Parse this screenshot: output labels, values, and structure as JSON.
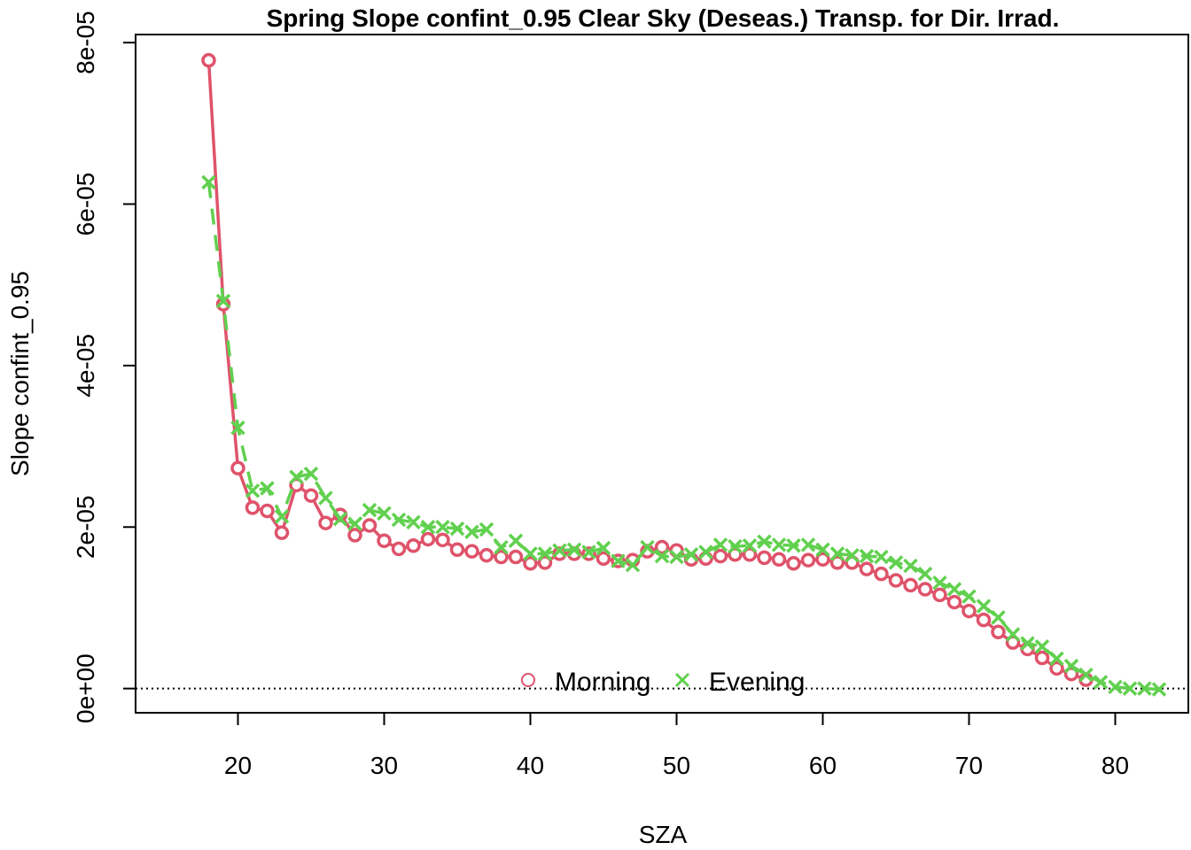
{
  "chart_data": {
    "type": "line",
    "title": "Spring Slope confint_0.95 Clear Sky (Deseas.) Transp. for Dir. Irrad.",
    "xlabel": "SZA",
    "ylabel": "Slope confint_0.95",
    "xlim": [
      13,
      85
    ],
    "ylim": [
      -3e-06,
      8.1e-05
    ],
    "x_ticks": [
      20,
      30,
      40,
      50,
      60,
      70,
      80
    ],
    "x_tick_labels": [
      "20",
      "30",
      "40",
      "50",
      "60",
      "70",
      "80"
    ],
    "y_ticks": [
      0,
      2e-05,
      4e-05,
      6e-05,
      8e-05
    ],
    "y_tick_labels": [
      "0e+00",
      "2e-05",
      "4e-05",
      "6e-05",
      "8e-05"
    ],
    "reference_line": 0,
    "legend_position": "bottom-center",
    "colors": {
      "morning": "#DF536B",
      "evening": "#61D04F"
    },
    "series": [
      {
        "name": "Morning",
        "marker": "circle",
        "line": "solid",
        "x": [
          18,
          19,
          20,
          21,
          22,
          23,
          24,
          25,
          26,
          27,
          28,
          29,
          30,
          31,
          32,
          33,
          34,
          35,
          36,
          37,
          38,
          39,
          40,
          41,
          42,
          43,
          44,
          45,
          46,
          47,
          48,
          49,
          50,
          51,
          52,
          53,
          54,
          55,
          56,
          57,
          58,
          59,
          60,
          61,
          62,
          63,
          64,
          65,
          66,
          67,
          68,
          69,
          70,
          71,
          72,
          73,
          74,
          75,
          76,
          77,
          78
        ],
        "y": [
          7.78e-05,
          4.76e-05,
          2.73e-05,
          2.24e-05,
          2.2e-05,
          1.93e-05,
          2.52e-05,
          2.39e-05,
          2.05e-05,
          2.15e-05,
          1.9e-05,
          2.02e-05,
          1.83e-05,
          1.73e-05,
          1.77e-05,
          1.85e-05,
          1.84e-05,
          1.72e-05,
          1.7e-05,
          1.65e-05,
          1.63e-05,
          1.63e-05,
          1.55e-05,
          1.56e-05,
          1.67e-05,
          1.67e-05,
          1.67e-05,
          1.61e-05,
          1.58e-05,
          1.59e-05,
          1.7e-05,
          1.75e-05,
          1.71e-05,
          1.6e-05,
          1.61e-05,
          1.64e-05,
          1.66e-05,
          1.66e-05,
          1.62e-05,
          1.6e-05,
          1.55e-05,
          1.59e-05,
          1.6e-05,
          1.56e-05,
          1.56e-05,
          1.48e-05,
          1.42e-05,
          1.34e-05,
          1.28e-05,
          1.23e-05,
          1.16e-05,
          1.07e-05,
          9.6e-06,
          8.5e-06,
          7e-06,
          5.7e-06,
          4.9e-06,
          3.8e-06,
          2.5e-06,
          1.8e-06,
          1.1e-06
        ]
      },
      {
        "name": "Evening",
        "marker": "cross",
        "line": "dashed",
        "x": [
          18,
          19,
          20,
          21,
          22,
          23,
          24,
          25,
          26,
          27,
          28,
          29,
          30,
          31,
          32,
          33,
          34,
          35,
          36,
          37,
          38,
          39,
          40,
          41,
          42,
          43,
          44,
          45,
          46,
          47,
          48,
          49,
          50,
          51,
          52,
          53,
          54,
          55,
          56,
          57,
          58,
          59,
          60,
          61,
          62,
          63,
          64,
          65,
          66,
          67,
          68,
          69,
          70,
          71,
          72,
          73,
          74,
          75,
          76,
          77,
          78,
          79,
          80,
          81,
          82,
          83
        ],
        "y": [
          6.27e-05,
          4.8e-05,
          3.23e-05,
          2.45e-05,
          2.48e-05,
          2.13e-05,
          2.62e-05,
          2.66e-05,
          2.36e-05,
          2.1e-05,
          2.04e-05,
          2.21e-05,
          2.17e-05,
          2.09e-05,
          2.06e-05,
          2e-05,
          2e-05,
          1.98e-05,
          1.94e-05,
          1.97e-05,
          1.75e-05,
          1.83e-05,
          1.67e-05,
          1.67e-05,
          1.71e-05,
          1.72e-05,
          1.69e-05,
          1.74e-05,
          1.58e-05,
          1.53e-05,
          1.75e-05,
          1.64e-05,
          1.63e-05,
          1.66e-05,
          1.69e-05,
          1.78e-05,
          1.76e-05,
          1.77e-05,
          1.82e-05,
          1.78e-05,
          1.77e-05,
          1.78e-05,
          1.72e-05,
          1.67e-05,
          1.65e-05,
          1.64e-05,
          1.63e-05,
          1.56e-05,
          1.52e-05,
          1.42e-05,
          1.31e-05,
          1.23e-05,
          1.14e-05,
          1.02e-05,
          8.8e-06,
          6.7e-06,
          5.6e-06,
          5.2e-06,
          3.7e-06,
          2.8e-06,
          1.7e-06,
          8e-07,
          2e-07,
          0,
          0,
          -1e-07
        ]
      }
    ]
  }
}
